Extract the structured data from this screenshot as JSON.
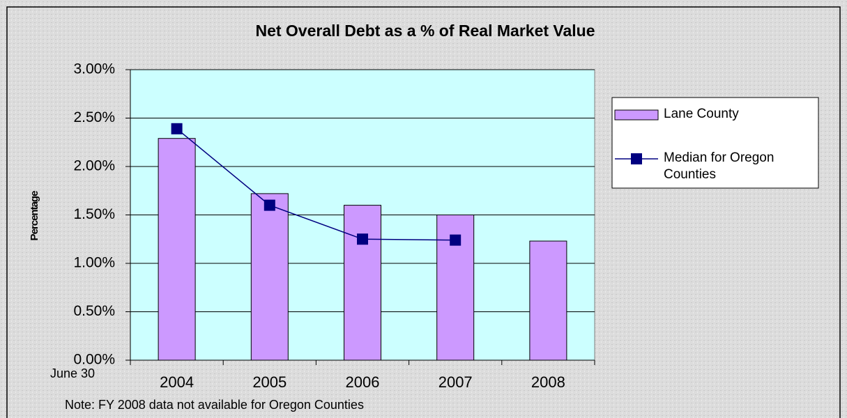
{
  "chart_data": {
    "type": "bar",
    "title": "Net Overall Debt as a % of Real Market Value",
    "y_label": "Percentage",
    "x_label": "June 30",
    "note": "Note:  FY 2008 data not available for Oregon Counties",
    "categories": [
      "2004",
      "2005",
      "2006",
      "2007",
      "2008"
    ],
    "series": [
      {
        "name": "Lane County",
        "type": "bar",
        "color": "#cc99ff",
        "values": [
          2.29,
          1.72,
          1.6,
          1.5,
          1.23
        ]
      },
      {
        "name": "Median for Oregon Counties",
        "type": "line",
        "color": "#000080",
        "values": [
          2.39,
          1.6,
          1.25,
          1.24,
          null
        ]
      }
    ],
    "ylim": [
      0,
      3
    ],
    "yticks": [
      {
        "value": 0,
        "label": "0.00%"
      },
      {
        "value": 0.5,
        "label": "0.50%"
      },
      {
        "value": 1,
        "label": "1.00%"
      },
      {
        "value": 1.5,
        "label": "1.50%"
      },
      {
        "value": 2,
        "label": "2.00%"
      },
      {
        "value": 2.5,
        "label": "2.50%"
      },
      {
        "value": 3,
        "label": "3.00%"
      }
    ],
    "grid": true,
    "legend": "right",
    "plot_background": "#ccffff"
  }
}
